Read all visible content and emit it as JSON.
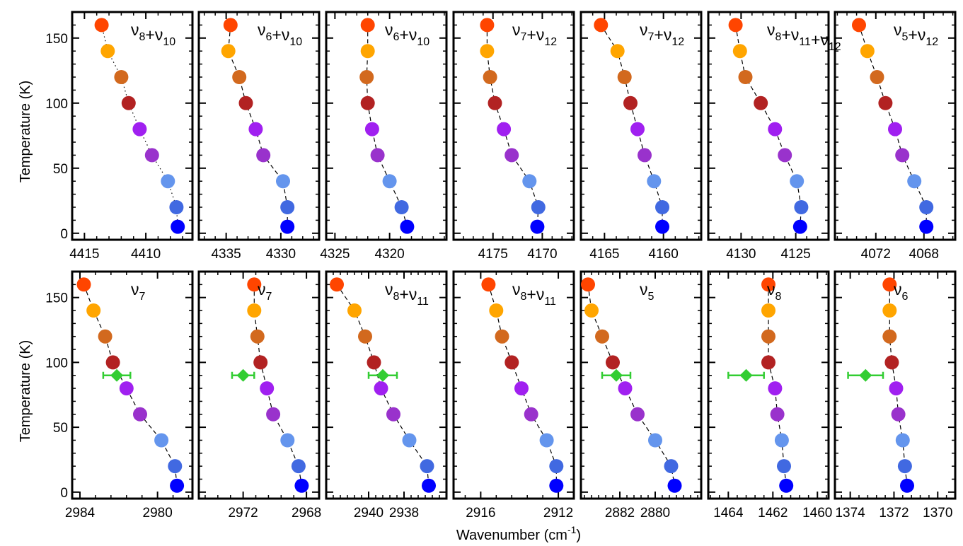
{
  "figure": {
    "ylabel": "Temperature (K)",
    "xlabel": "Wavenumber (cm",
    "xlabel_sup": "-1",
    "xlabel_tail": ")"
  },
  "temperatures": [
    160,
    140,
    120,
    100,
    80,
    60,
    40,
    20,
    5
  ],
  "colors": [
    "#ff4500",
    "#ffa500",
    "#d2691e",
    "#b22222",
    "#a020f0",
    "#9932cc",
    "#6495ed",
    "#4169e1",
    "#0000ff"
  ],
  "exp_color": "#32cd32",
  "chart_data": [
    {
      "type": "scatter",
      "label": [
        [
          "ν",
          "8"
        ],
        [
          "+ν",
          "10"
        ]
      ],
      "x": [
        4413.6,
        4413.1,
        4412.0,
        4411.4,
        4410.5,
        4409.5,
        4408.2,
        4407.5,
        4407.4
      ],
      "xlim": [
        4416,
        4406.2
      ],
      "xticks": [
        4415,
        4410
      ],
      "line": "dotted"
    },
    {
      "type": "scatter",
      "label": [
        [
          "ν",
          "6"
        ],
        [
          "+ν",
          "10"
        ]
      ],
      "x": [
        4334.6,
        4334.8,
        4333.8,
        4333.2,
        4332.3,
        4331.6,
        4329.8,
        4329.4,
        4329.4
      ],
      "xlim": [
        4337.5,
        4326.5
      ],
      "xticks": [
        4335,
        4330
      ],
      "line": "dashed"
    },
    {
      "type": "scatter",
      "label": [
        [
          "ν",
          "6"
        ],
        [
          "+ν",
          "10"
        ]
      ],
      "x": [
        4322.0,
        4322.0,
        4322.1,
        4322.0,
        4321.6,
        4321.1,
        4320.0,
        4318.9,
        4318.4
      ],
      "xlim": [
        4325.8,
        4314.8
      ],
      "xticks": [
        4325,
        4320
      ],
      "line": "dashed"
    },
    {
      "type": "scatter",
      "label": [
        [
          "ν",
          "7"
        ],
        [
          "+ν",
          "12"
        ]
      ],
      "x": [
        4175.6,
        4175.6,
        4175.3,
        4174.8,
        4173.9,
        4173.1,
        4171.3,
        4170.4,
        4170.5
      ],
      "xlim": [
        4179,
        4166.8
      ],
      "xticks": [
        4175,
        4170
      ],
      "line": "dashed"
    },
    {
      "type": "scatter",
      "label": [
        [
          "ν",
          "7"
        ],
        [
          "+ν",
          "12"
        ]
      ],
      "x": [
        4165.3,
        4163.9,
        4163.3,
        4162.8,
        4162.2,
        4161.6,
        4160.8,
        4160.1,
        4160.1
      ],
      "xlim": [
        4167,
        4156.8
      ],
      "xticks": [
        4165,
        4160
      ],
      "line": "dashed"
    },
    {
      "type": "scatter",
      "label": [
        [
          "ν",
          "8"
        ],
        [
          "+ν",
          "11"
        ],
        [
          "+ν",
          "12"
        ]
      ],
      "x": [
        4130.5,
        4130.1,
        4129.6,
        4128.2,
        4126.9,
        4126.0,
        4124.9,
        4124.5,
        4124.6
      ],
      "xlim": [
        4133,
        4122
      ],
      "xticks": [
        4130,
        4125
      ],
      "line": "dashed"
    },
    {
      "type": "scatter",
      "label": [
        [
          "ν",
          "5"
        ],
        [
          "+ν",
          "12"
        ]
      ],
      "x": [
        4073.4,
        4072.7,
        4071.9,
        4071.2,
        4070.4,
        4069.8,
        4068.8,
        4067.8,
        4067.8
      ],
      "xlim": [
        4075.4,
        4065.4
      ],
      "xticks": [
        4072,
        4068
      ],
      "line": "dashed"
    },
    {
      "type": "scatter",
      "label": [
        [
          "ν",
          "7"
        ]
      ],
      "x": [
        2983.8,
        2983.3,
        2982.7,
        2982.3,
        2981.6,
        2980.9,
        2979.8,
        2979.1,
        2979.0
      ],
      "xlim": [
        2984.4,
        2978.2
      ],
      "xticks": [
        2984,
        2980
      ],
      "line": "dashed",
      "exp": {
        "x": 2982.1,
        "xerr": 0.7,
        "y": 90
      }
    },
    {
      "type": "scatter",
      "label": [
        [
          "ν",
          "7"
        ]
      ],
      "x": [
        2971.3,
        2971.3,
        2971.1,
        2970.9,
        2970.5,
        2970.1,
        2969.2,
        2968.5,
        2968.3
      ],
      "xlim": [
        2974.8,
        2967.2
      ],
      "xticks": [
        2972,
        2968
      ],
      "line": "dashed",
      "exp": {
        "x": 2972.0,
        "xerr": 0.7,
        "y": 90
      }
    },
    {
      "type": "scatter",
      "label": [
        [
          "ν",
          "8"
        ],
        [
          "+ν",
          "11"
        ]
      ],
      "x": [
        2941.8,
        2940.8,
        2940.2,
        2939.7,
        2939.3,
        2938.6,
        2937.7,
        2936.7,
        2936.6
      ],
      "xlim": [
        2942.4,
        2935.6
      ],
      "xticks": [
        2940,
        2938
      ],
      "line": "dashed",
      "exp": {
        "x": 2939.2,
        "xerr": 0.8,
        "y": 90
      }
    },
    {
      "type": "scatter",
      "label": [
        [
          "ν",
          "8"
        ],
        [
          "+ν",
          "11"
        ]
      ],
      "x": [
        2915.6,
        2915.2,
        2914.9,
        2914.4,
        2913.9,
        2913.4,
        2912.6,
        2912.1,
        2912.1
      ],
      "xlim": [
        2917.4,
        2911.2
      ],
      "xticks": [
        2916,
        2912
      ],
      "line": "dashed"
    },
    {
      "type": "scatter",
      "label": [
        [
          "ν",
          "5"
        ]
      ],
      "x": [
        2883.8,
        2883.6,
        2883.0,
        2882.4,
        2881.7,
        2881.0,
        2880.0,
        2879.1,
        2878.9
      ],
      "xlim": [
        2884.2,
        2877.4
      ],
      "xticks": [
        2882,
        2880
      ],
      "line": "dashed",
      "exp": {
        "x": 2882.2,
        "xerr": 0.8,
        "y": 90
      }
    },
    {
      "type": "scatter",
      "label": [
        [
          "ν",
          "8"
        ]
      ],
      "x": [
        1462.2,
        1462.2,
        1462.2,
        1462.2,
        1461.9,
        1461.8,
        1461.6,
        1461.5,
        1461.4
      ],
      "xlim": [
        1464.9,
        1459.5
      ],
      "xticks": [
        1464,
        1462,
        1460
      ],
      "line": "dashed",
      "exp": {
        "x": 1463.2,
        "xerr": 0.8,
        "y": 90
      }
    },
    {
      "type": "scatter",
      "label": [
        [
          "ν",
          "6"
        ]
      ],
      "x": [
        1372.2,
        1372.2,
        1372.2,
        1372.1,
        1371.9,
        1371.8,
        1371.6,
        1371.5,
        1371.4
      ],
      "xlim": [
        1374.7,
        1369.2
      ],
      "xticks": [
        1374,
        1372,
        1370
      ],
      "line": "dashed",
      "exp": {
        "x": 1373.3,
        "xerr": 0.8,
        "y": 90
      }
    }
  ]
}
